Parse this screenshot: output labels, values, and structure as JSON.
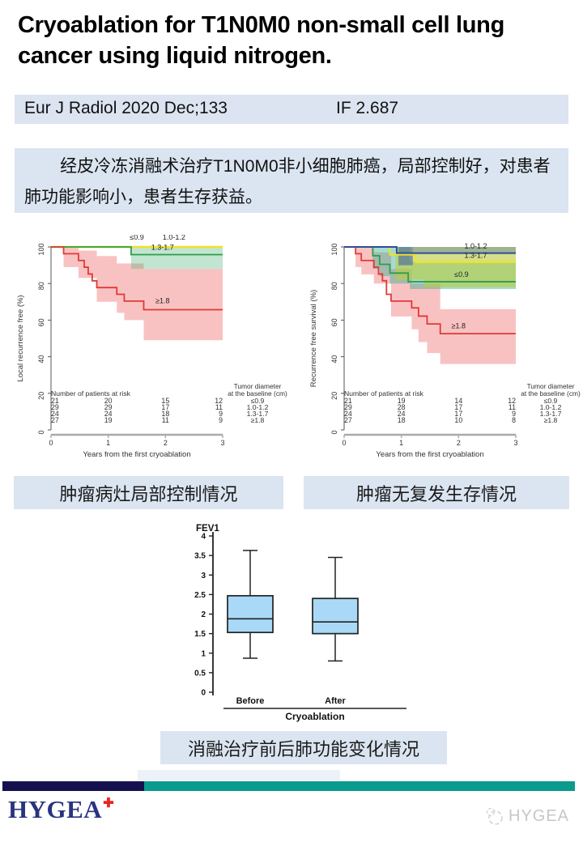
{
  "title": " Cryoablation for T1N0M0 non-small cell lung\ncancer using liquid nitrogen.",
  "journal_bar": {
    "text": "Eur J Radiol 2020 Dec;133",
    "impact_factor": "IF 2.687"
  },
  "summary_box": {
    "text": "经皮冷冻消融术治疗T1N0M0非小细胞肺癌，局部控制好，对患者肺功能影响小，患者生存获益。"
  },
  "captions": {
    "left": "肿瘤病灶局部控制情况",
    "right": "肿瘤无复发生存情况",
    "bottom": "消融治疗前后肺功能变化情况"
  },
  "footer": {
    "brand": "HYGEA",
    "plus": "✚",
    "watermark": "HYGEA",
    "navy_color": "#15114e",
    "teal_color": "#0a9a8e",
    "brand_color": "#29337f"
  },
  "chart_data": [
    {
      "id": "km-local",
      "type": "line",
      "subtype": "kaplan-meier",
      "ylabel": "Local recurrence free (%)",
      "xlabel": "Years from the first cryoablation",
      "xlim": [
        0,
        3
      ],
      "ylim": [
        0,
        100
      ],
      "xticks": [
        "0",
        "1",
        "2",
        "3"
      ],
      "yticks": [
        "0",
        "20",
        "40",
        "60",
        "80",
        "100"
      ],
      "bands": [
        {
          "fill": "rgba(238,95,95,0.38)",
          "points": [
            [
              0,
              100
            ],
            [
              0.48,
              100
            ],
            [
              0.48,
              98
            ],
            [
              0.8,
              98
            ],
            [
              0.8,
              95
            ],
            [
              1.15,
              95
            ],
            [
              1.15,
              91
            ],
            [
              1.62,
              91
            ],
            [
              1.62,
              88
            ],
            [
              3,
              88
            ],
            [
              3,
              49
            ],
            [
              1.62,
              49
            ],
            [
              1.62,
              60
            ],
            [
              1.28,
              60
            ],
            [
              1.28,
              64
            ],
            [
              1.15,
              64
            ],
            [
              1.15,
              70
            ],
            [
              0.8,
              70
            ],
            [
              0.8,
              83
            ],
            [
              0.48,
              83
            ],
            [
              0.48,
              89
            ],
            [
              0.22,
              89
            ],
            [
              0.22,
              100
            ]
          ]
        },
        {
          "fill": "rgba(70,175,115,0.33)",
          "points": [
            [
              1.4,
              100
            ],
            [
              3,
              100
            ],
            [
              3,
              88
            ],
            [
              1.4,
              88
            ]
          ]
        }
      ],
      "series": [
        {
          "name": "≤0.9 / 1.0-1.2",
          "color": "#f0e228",
          "width": 2.4,
          "points": [
            [
              0,
              100
            ],
            [
              3,
              100
            ]
          ]
        },
        {
          "name": "1.3-1.7",
          "color": "#2e9e4b",
          "width": 1.8,
          "points": [
            [
              0,
              100
            ],
            [
              1.4,
              100
            ],
            [
              1.4,
              95.8
            ],
            [
              3,
              95.8
            ]
          ]
        },
        {
          "name": "≥1.8",
          "color": "#e03a36",
          "width": 1.8,
          "points": [
            [
              0,
              100
            ],
            [
              0.22,
              100
            ],
            [
              0.22,
              96.3
            ],
            [
              0.48,
              96.3
            ],
            [
              0.48,
              92.6
            ],
            [
              0.58,
              92.6
            ],
            [
              0.58,
              88.9
            ],
            [
              0.65,
              88.9
            ],
            [
              0.65,
              85.2
            ],
            [
              0.72,
              85.2
            ],
            [
              0.72,
              81.5
            ],
            [
              0.8,
              81.5
            ],
            [
              0.8,
              77.8
            ],
            [
              1.15,
              77.8
            ],
            [
              1.15,
              74.1
            ],
            [
              1.28,
              74.1
            ],
            [
              1.28,
              70.4
            ],
            [
              1.62,
              70.4
            ],
            [
              1.62,
              65.7
            ],
            [
              3,
              65.7
            ]
          ]
        }
      ],
      "labels": [
        {
          "text": "≤0.9",
          "x": 1.5,
          "y": 104
        },
        {
          "text": "1.0-1.2",
          "x": 2.15,
          "y": 104
        },
        {
          "text": "1.3-1.7",
          "x": 1.95,
          "y": 98.4
        },
        {
          "text": "≥1.8",
          "x": 1.95,
          "y": 69.2
        }
      ],
      "risk_table": {
        "header": "Number of patients at risk",
        "rows": [
          [
            "21",
            "20",
            "15",
            "12"
          ],
          [
            "29",
            "29",
            "17",
            "11"
          ],
          [
            "24",
            "24",
            "18",
            "9"
          ],
          [
            "27",
            "19",
            "11",
            "9"
          ]
        ],
        "group_header": [
          "Tumor diameter",
          "at the baseline (cm)"
        ],
        "groups": [
          "≤0.9",
          "1.0-1.2",
          "1.3-1.7",
          "≥1.8"
        ]
      }
    },
    {
      "id": "km-rfs",
      "type": "line",
      "subtype": "kaplan-meier",
      "ylabel": "Recurrence free survival (%)",
      "xlabel": "Years from the first cryoablation",
      "xlim": [
        0,
        3
      ],
      "ylim": [
        0,
        100
      ],
      "xticks": [
        "0",
        "1",
        "2",
        "3"
      ],
      "yticks": [
        "0",
        "20",
        "40",
        "60",
        "80",
        "100"
      ],
      "bands": [
        {
          "fill": "rgba(238,95,95,0.38)",
          "points": [
            [
              0,
              100
            ],
            [
              0.52,
              100
            ],
            [
              0.52,
              97
            ],
            [
              0.82,
              97
            ],
            [
              0.82,
              88
            ],
            [
              1.18,
              88
            ],
            [
              1.18,
              80
            ],
            [
              1.68,
              80
            ],
            [
              1.68,
              66
            ],
            [
              3,
              66
            ],
            [
              3,
              36
            ],
            [
              1.68,
              36
            ],
            [
              1.68,
              42
            ],
            [
              1.45,
              42
            ],
            [
              1.45,
              48
            ],
            [
              1.3,
              48
            ],
            [
              1.3,
              55
            ],
            [
              1.18,
              55
            ],
            [
              1.18,
              62
            ],
            [
              0.82,
              62
            ],
            [
              0.82,
              80
            ],
            [
              0.52,
              80
            ],
            [
              0.52,
              85
            ],
            [
              0.3,
              85
            ],
            [
              0.3,
              89
            ],
            [
              0.2,
              89
            ],
            [
              0.2,
              100
            ]
          ]
        },
        {
          "fill": "rgba(55,175,150,0.45)",
          "points": [
            [
              0.5,
              100
            ],
            [
              1.15,
              100
            ],
            [
              1.15,
              92
            ],
            [
              3,
              92
            ],
            [
              3,
              77
            ],
            [
              1.15,
              77
            ],
            [
              1.15,
              80
            ],
            [
              0.8,
              80
            ],
            [
              0.8,
              84
            ],
            [
              0.62,
              84
            ],
            [
              0.62,
              88
            ],
            [
              0.5,
              88
            ]
          ]
        },
        {
          "fill": "rgba(185,205,65,0.62)",
          "points": [
            [
              0.9,
              100
            ],
            [
              3,
              100
            ],
            [
              3,
              78
            ],
            [
              1.4,
              78
            ],
            [
              1.4,
              82
            ],
            [
              0.9,
              82
            ]
          ]
        },
        {
          "fill": "rgba(60,95,170,0.35)",
          "points": [
            [
              1.2,
              100
            ],
            [
              3,
              100
            ],
            [
              3,
              96.6
            ],
            [
              1.2,
              96.6
            ]
          ]
        },
        {
          "fill": "rgba(55,90,165,0.55)",
          "points": [
            [
              0.95,
              100
            ],
            [
              1.2,
              100
            ],
            [
              1.2,
              90
            ],
            [
              0.95,
              90
            ]
          ]
        }
      ],
      "series": [
        {
          "name": "≥1.8",
          "color": "#e03a36",
          "width": 1.8,
          "points": [
            [
              0,
              100
            ],
            [
              0.2,
              100
            ],
            [
              0.2,
              96.3
            ],
            [
              0.3,
              96.3
            ],
            [
              0.3,
              92.6
            ],
            [
              0.52,
              92.6
            ],
            [
              0.52,
              88.9
            ],
            [
              0.6,
              88.9
            ],
            [
              0.6,
              85.2
            ],
            [
              0.67,
              85.2
            ],
            [
              0.67,
              81.5
            ],
            [
              0.74,
              81.5
            ],
            [
              0.74,
              74.1
            ],
            [
              0.82,
              74.1
            ],
            [
              0.82,
              70.4
            ],
            [
              1.18,
              70.4
            ],
            [
              1.18,
              66.7
            ],
            [
              1.3,
              66.7
            ],
            [
              1.3,
              62.2
            ],
            [
              1.45,
              62.2
            ],
            [
              1.45,
              57.9
            ],
            [
              1.68,
              57.9
            ],
            [
              1.68,
              52.6
            ],
            [
              3,
              52.6
            ]
          ]
        },
        {
          "name": "≤0.9",
          "color": "#2e9e4b",
          "width": 1.8,
          "points": [
            [
              0,
              100
            ],
            [
              0.5,
              100
            ],
            [
              0.5,
              95.2
            ],
            [
              0.62,
              95.2
            ],
            [
              0.62,
              90.5
            ],
            [
              0.8,
              90.5
            ],
            [
              0.8,
              85.7
            ],
            [
              1.12,
              85.7
            ],
            [
              1.12,
              81
            ],
            [
              3,
              81
            ]
          ]
        },
        {
          "name": "1.3-1.7",
          "color": "#f0e228",
          "width": 2.2,
          "points": [
            [
              0,
              100
            ],
            [
              0.8,
              100
            ],
            [
              0.8,
              95.8
            ],
            [
              1.25,
              95.8
            ],
            [
              1.25,
              91.7
            ],
            [
              3,
              91.7
            ]
          ]
        },
        {
          "name": "1.0-1.2",
          "color": "#2e4d9e",
          "width": 2,
          "points": [
            [
              0,
              100
            ],
            [
              0.92,
              100
            ],
            [
              0.92,
              96.6
            ],
            [
              3,
              96.6
            ]
          ]
        }
      ],
      "labels": [
        {
          "text": "1.0-1.2",
          "x": 2.3,
          "y": 99.2
        },
        {
          "text": "1.3-1.7",
          "x": 2.3,
          "y": 94.1
        },
        {
          "text": "≤0.9",
          "x": 2.05,
          "y": 83.6
        },
        {
          "text": "≥1.8",
          "x": 2.0,
          "y": 55.6
        }
      ],
      "risk_table": {
        "header": "Number of patients at risk",
        "rows": [
          [
            "21",
            "19",
            "14",
            "12"
          ],
          [
            "29",
            "28",
            "17",
            "11"
          ],
          [
            "24",
            "24",
            "17",
            "9"
          ],
          [
            "27",
            "18",
            "10",
            "8"
          ]
        ],
        "group_header": [
          "Tumor diameter",
          "at the baseline (cm)"
        ],
        "groups": [
          "≤0.9",
          "1.0-1.2",
          "1.3-1.7",
          "≥1.8"
        ]
      }
    },
    {
      "id": "fev1-box",
      "type": "boxplot",
      "title": "FEV1",
      "categories": [
        "Before",
        "After"
      ],
      "group_label": "Cryoablation",
      "ylim": [
        0,
        4
      ],
      "yticks": [
        "0",
        "0.5",
        "1",
        "1.5",
        "2",
        "2.5",
        "3",
        "3.5",
        "4"
      ],
      "boxes": [
        {
          "label": "Before",
          "min": 0.87,
          "q1": 1.53,
          "median": 1.88,
          "q3": 2.47,
          "max": 3.63
        },
        {
          "label": "After",
          "min": 0.8,
          "q1": 1.5,
          "median": 1.8,
          "q3": 2.4,
          "max": 3.45
        }
      ],
      "box_fill": "#a9d9f7"
    }
  ]
}
